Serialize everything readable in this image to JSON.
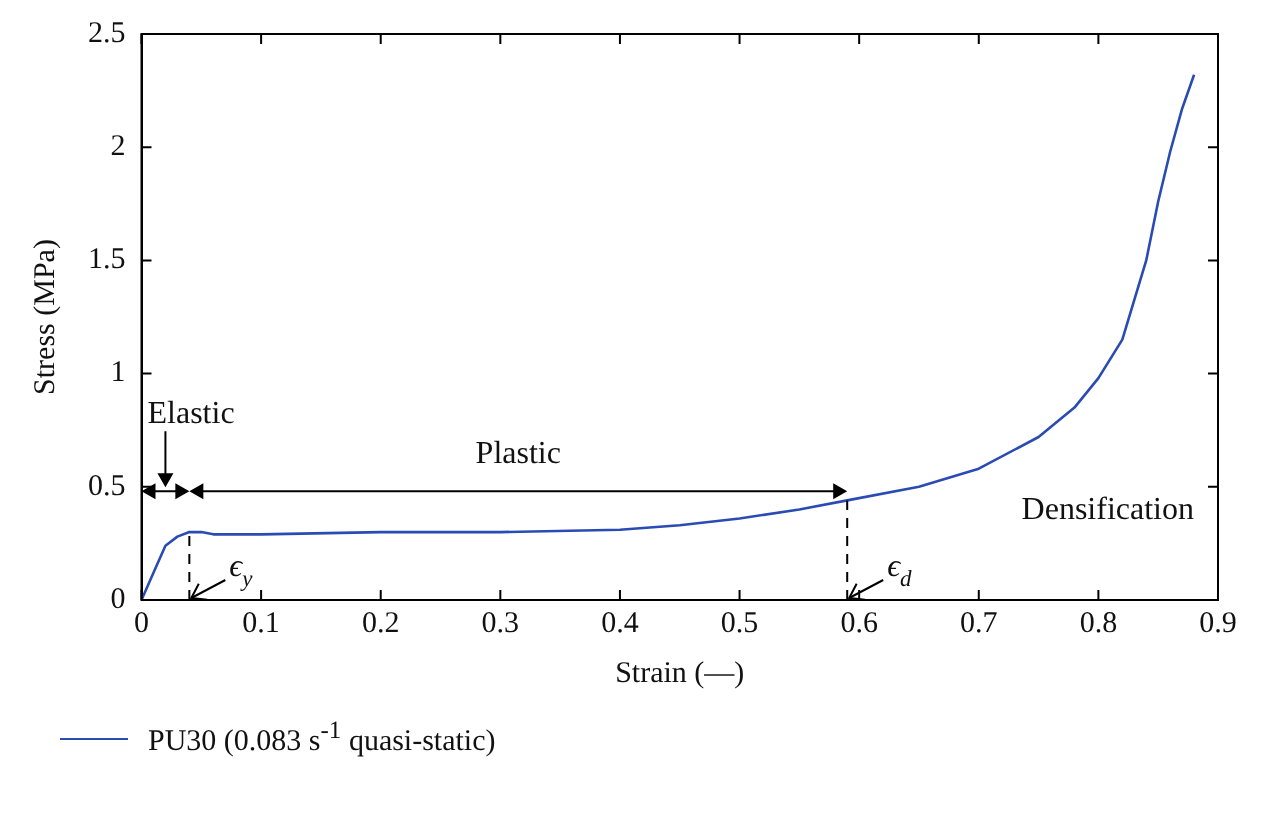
{
  "chart_data": {
    "type": "line",
    "xlabel": "Strain (—)",
    "ylabel": "Stress (MPa)",
    "xlim": [
      0,
      0.9
    ],
    "xticks": [
      0,
      0.1,
      0.2,
      0.3,
      0.4,
      0.5,
      0.6,
      0.7,
      0.8,
      0.9
    ],
    "ylim": [
      0,
      2.5
    ],
    "yticks": [
      0,
      0.5,
      1,
      1.5,
      2,
      2.5
    ],
    "series": [
      {
        "name": "PU30 (0.083 s$^{-1}$ quasi-static)",
        "color": "#2a4bb4",
        "x": [
          0,
          0.01,
          0.02,
          0.03,
          0.04,
          0.05,
          0.06,
          0.1,
          0.2,
          0.3,
          0.4,
          0.45,
          0.5,
          0.55,
          0.59,
          0.65,
          0.7,
          0.75,
          0.78,
          0.8,
          0.82,
          0.84,
          0.85,
          0.86,
          0.87,
          0.88
        ],
        "values": [
          0,
          0.12,
          0.24,
          0.28,
          0.3,
          0.3,
          0.29,
          0.29,
          0.3,
          0.3,
          0.31,
          0.33,
          0.36,
          0.4,
          0.44,
          0.5,
          0.58,
          0.72,
          0.85,
          0.98,
          1.15,
          1.5,
          1.76,
          1.98,
          2.17,
          2.32
        ]
      }
    ],
    "annotations": [
      "Elastic",
      "Plastic",
      "Densification",
      {
        "text": "ϵ$_{y}$",
        "x": 0.04,
        "y": 0.3
      },
      {
        "text": "ϵ$_{d}$",
        "x": 0.59,
        "y": 0.44
      }
    ],
    "legend": "bottom",
    "grid": false,
    "marker": "none",
    "line_style": "solid"
  }
}
